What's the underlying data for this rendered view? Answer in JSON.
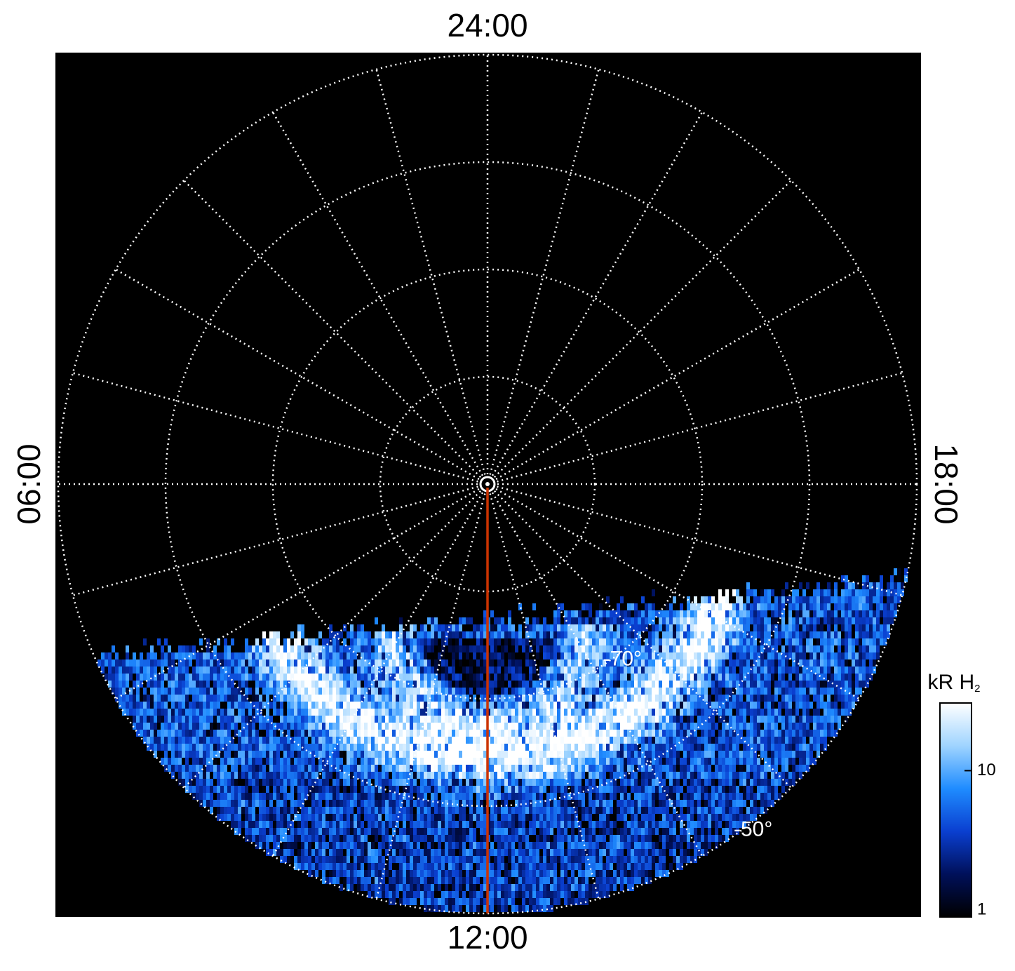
{
  "chart_data": {
    "type": "polar-image",
    "hour_labels": [
      {
        "value": 24,
        "label": "24:00"
      },
      {
        "value": 6,
        "label": "06:00"
      },
      {
        "value": 18,
        "label": "18:00"
      },
      {
        "value": 12,
        "label": "12:00"
      }
    ],
    "rlim": [
      -90,
      -50
    ],
    "lat_circles": [
      -80,
      -70,
      -60,
      -50
    ],
    "lat_labels": [
      {
        "value": -70,
        "label": "-70°"
      },
      {
        "value": -50,
        "label": "-50°"
      }
    ],
    "meridian_step_hours": 1,
    "meridian_line": {
      "hour": 12,
      "color": "#cc3300"
    },
    "grid": true,
    "colorbar": {
      "label": "kR H",
      "label_sub": "2",
      "clim": [
        1,
        29
      ],
      "ticks": [
        1,
        10
      ],
      "log": true,
      "colors": [
        "#000000",
        "#00105a",
        "#0a3fd0",
        "#1f8cff",
        "#9fd4ff",
        "#ffffff"
      ]
    }
  }
}
